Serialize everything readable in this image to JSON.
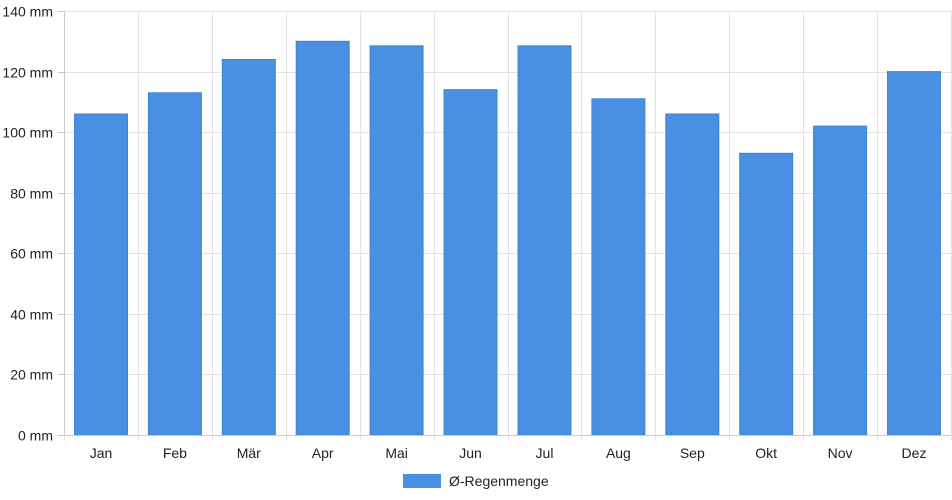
{
  "chart_data": {
    "type": "bar",
    "categories": [
      "Jan",
      "Feb",
      "Mär",
      "Apr",
      "Mai",
      "Jun",
      "Jul",
      "Aug",
      "Sep",
      "Okt",
      "Nov",
      "Dez"
    ],
    "series": [
      {
        "name": "Ø-Regenmenge",
        "values": [
          106,
          113,
          124,
          130,
          128.5,
          114,
          128.5,
          111,
          106,
          93,
          102,
          120
        ]
      }
    ],
    "ylim": [
      0,
      140
    ],
    "yticks": [
      "0 mm",
      "20 mm",
      "40 mm",
      "60 mm",
      "80 mm",
      "100 mm",
      "120 mm",
      "140 mm"
    ],
    "unit": "mm",
    "grid": true,
    "legend_position": "bottom-center"
  },
  "colors": {
    "bar": "#4a90e2",
    "grid": "#e3e3e3",
    "axis": "#cccccc"
  }
}
